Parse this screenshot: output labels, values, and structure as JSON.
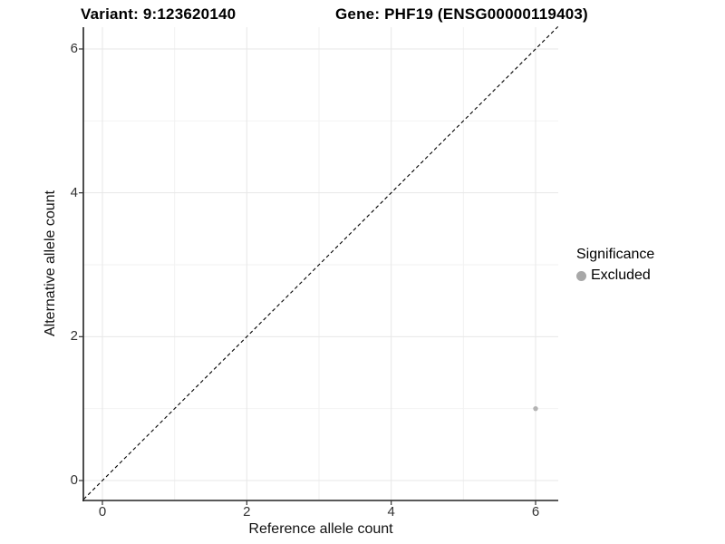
{
  "header": {
    "title_left": "Variant: 9:123620140",
    "title_right": "Gene: PHF19 (ENSG00000119403)"
  },
  "chart_data": {
    "type": "scatter",
    "xlabel": "Reference allele count",
    "ylabel": "Alternative allele count",
    "xlim": [
      -0.26,
      6.31
    ],
    "ylim": [
      -0.26,
      6.31
    ],
    "x_ticks": [
      0,
      2,
      4,
      6
    ],
    "y_ticks": [
      0,
      2,
      4,
      6
    ],
    "x_minor_ticks": [
      1,
      3,
      5
    ],
    "y_minor_ticks": [
      1,
      3,
      5
    ],
    "x_tick_labels": [
      "0",
      "2",
      "4",
      "6"
    ],
    "y_tick_labels": [
      "0",
      "2",
      "4",
      "6"
    ],
    "grid": "on",
    "identity_line": {
      "style": "dashed",
      "slope": 1,
      "intercept": 0
    },
    "series": [
      {
        "name": "Excluded",
        "color": "#b3b3b3",
        "points": [
          {
            "x": 6,
            "y": 1
          }
        ]
      }
    ],
    "legend": {
      "title": "Significance",
      "position": "right",
      "entries": [
        {
          "label": "Excluded",
          "color": "#a8a8a8"
        }
      ]
    }
  },
  "colors": {
    "background": "#ffffff",
    "axis_line": "#222222",
    "tick_mark": "#333333",
    "tick_label": "#333333",
    "grid_major": "#e7e7e7",
    "grid_minor": "#f2f2f2",
    "identity_line": "#000000"
  }
}
